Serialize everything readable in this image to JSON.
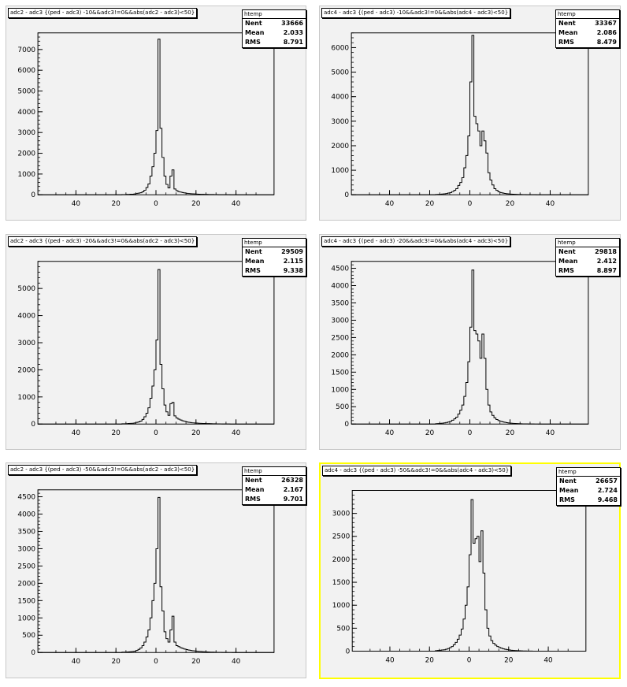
{
  "pads": [
    {
      "title": "adc2 - adc3 {(ped - adc3) -10&&adc3!=0&&abs(adc2 - adc3)<50}",
      "stats": {
        "name": "htemp",
        "entries_label": "Nent",
        "entries": "33666",
        "mean_label": "Mean",
        "mean": "2.033",
        "rms_label": "RMS",
        "rms": "8.791"
      },
      "selected": false,
      "chart_data": {
        "type": "bar",
        "title": "adc2 - adc3 {(ped - adc3) -10&&adc3!=0&&abs(adc2 - adc3)<50}",
        "xlim": [
          -59,
          59
        ],
        "ylim": [
          0,
          7800
        ],
        "xticks": [
          "40",
          "20",
          "0",
          "20",
          "40"
        ],
        "yticks": [
          "0",
          "1000",
          "2000",
          "3000",
          "4000",
          "5000",
          "6000",
          "7000"
        ],
        "bin_width": 1,
        "values": [
          0,
          0,
          0,
          0,
          0,
          0,
          0,
          0,
          0,
          0,
          0,
          0,
          0,
          0,
          0,
          0,
          0,
          0,
          0,
          0,
          0,
          0,
          0,
          0,
          0,
          0,
          0,
          0,
          0,
          0,
          0,
          0,
          0,
          0,
          0,
          0,
          0,
          0,
          0,
          0,
          0,
          0,
          10,
          10,
          20,
          20,
          30,
          30,
          40,
          60,
          80,
          100,
          140,
          220,
          350,
          520,
          900,
          1350,
          2000,
          3100,
          7500,
          3200,
          1800,
          900,
          500,
          330,
          900,
          1200,
          280,
          200,
          150,
          130,
          110,
          90,
          70,
          60,
          50,
          45,
          40,
          35,
          30,
          25,
          22,
          20,
          18,
          16,
          14,
          12,
          10,
          8,
          6,
          5,
          4,
          3,
          2,
          2,
          1,
          1,
          0,
          0,
          0,
          0,
          0,
          0,
          0,
          0,
          0,
          0,
          0,
          0,
          0,
          0,
          0,
          0,
          0,
          0,
          0,
          0
        ]
      }
    },
    {
      "title": "adc4 - adc3 {(ped - adc3) -10&&adc3!=0&&abs(adc4 - adc3)<50}",
      "stats": {
        "name": "htemp",
        "entries_label": "Nent",
        "entries": "33367",
        "mean_label": "Mean",
        "mean": "2.086",
        "rms_label": "RMS",
        "rms": "8.479"
      },
      "selected": false,
      "chart_data": {
        "type": "bar",
        "title": "adc4 - adc3 {(ped - adc3) -10&&adc3!=0&&abs(adc4 - adc3)<50}",
        "xlim": [
          -59,
          59
        ],
        "ylim": [
          0,
          6600
        ],
        "xticks": [
          "40",
          "20",
          "0",
          "20",
          "40"
        ],
        "yticks": [
          "0",
          "1000",
          "2000",
          "3000",
          "4000",
          "5000",
          "6000"
        ],
        "bin_width": 1,
        "values": [
          0,
          0,
          0,
          0,
          0,
          0,
          0,
          0,
          0,
          0,
          0,
          0,
          0,
          0,
          0,
          0,
          0,
          0,
          0,
          0,
          0,
          0,
          0,
          0,
          0,
          0,
          0,
          0,
          0,
          0,
          0,
          0,
          0,
          0,
          0,
          0,
          0,
          0,
          0,
          0,
          0,
          0,
          10,
          15,
          20,
          30,
          40,
          50,
          70,
          90,
          130,
          180,
          250,
          380,
          500,
          700,
          1100,
          1600,
          2400,
          4600,
          6500,
          3200,
          2900,
          2600,
          2000,
          2600,
          2200,
          1700,
          900,
          600,
          400,
          250,
          180,
          120,
          90,
          70,
          55,
          45,
          35,
          28,
          22,
          18,
          15,
          12,
          10,
          8,
          6,
          5,
          4,
          3,
          2,
          2,
          1,
          1,
          0,
          0,
          0,
          0,
          0,
          0,
          0,
          0,
          0,
          0,
          0,
          0,
          0,
          0,
          0,
          0,
          0,
          0,
          0,
          0,
          0,
          0,
          0,
          0
        ]
      }
    },
    {
      "title": "adc2 - adc3 {(ped - adc3) -20&&adc3!=0&&abs(adc2 - adc3)<50}",
      "stats": {
        "name": "htemp",
        "entries_label": "Nent",
        "entries": "29509",
        "mean_label": "Mean",
        "mean": "2.115",
        "rms_label": "RMS",
        "rms": "9.338"
      },
      "selected": false,
      "chart_data": {
        "type": "bar",
        "title": "adc2 - adc3 {(ped - adc3) -20&&adc3!=0&&abs(adc2 - adc3)<50}",
        "xlim": [
          -59,
          59
        ],
        "ylim": [
          0,
          6000
        ],
        "xticks": [
          "40",
          "20",
          "0",
          "20",
          "40"
        ],
        "yticks": [
          "0",
          "1000",
          "2000",
          "3000",
          "4000",
          "5000"
        ],
        "bin_width": 1,
        "values": [
          0,
          0,
          0,
          0,
          0,
          0,
          0,
          0,
          0,
          0,
          0,
          0,
          0,
          0,
          0,
          0,
          0,
          0,
          0,
          0,
          0,
          0,
          0,
          0,
          0,
          0,
          0,
          0,
          0,
          0,
          0,
          0,
          0,
          0,
          0,
          0,
          0,
          0,
          0,
          0,
          0,
          0,
          10,
          10,
          15,
          20,
          25,
          30,
          40,
          60,
          80,
          110,
          170,
          270,
          400,
          600,
          950,
          1400,
          2000,
          3100,
          5700,
          2200,
          1300,
          700,
          450,
          320,
          750,
          800,
          300,
          220,
          180,
          150,
          120,
          100,
          80,
          65,
          55,
          45,
          40,
          35,
          30,
          25,
          22,
          20,
          18,
          16,
          14,
          12,
          10,
          8,
          6,
          5,
          4,
          3,
          2,
          2,
          1,
          1,
          0,
          0,
          0,
          0,
          0,
          0,
          0,
          0,
          0,
          0,
          0,
          0,
          0,
          0,
          0,
          0,
          0,
          0,
          0,
          0
        ]
      }
    },
    {
      "title": "adc4 - adc3 {(ped - adc3) -20&&adc3!=0&&abs(adc4 - adc3)<50}",
      "stats": {
        "name": "htemp",
        "entries_label": "Nent",
        "entries": "29818",
        "mean_label": "Mean",
        "mean": "2.412",
        "rms_label": "RMS",
        "rms": "8.897"
      },
      "selected": false,
      "chart_data": {
        "type": "bar",
        "title": "adc4 - adc3 {(ped - adc3) -20&&adc3!=0&&abs(adc4 - adc3)<50}",
        "xlim": [
          -59,
          59
        ],
        "ylim": [
          0,
          4700
        ],
        "xticks": [
          "40",
          "20",
          "0",
          "20",
          "40"
        ],
        "yticks": [
          "0",
          "500",
          "1000",
          "1500",
          "2000",
          "2500",
          "3000",
          "3500",
          "4000",
          "4500"
        ],
        "bin_width": 1,
        "values": [
          0,
          0,
          0,
          0,
          0,
          0,
          0,
          0,
          0,
          0,
          0,
          0,
          0,
          0,
          0,
          0,
          0,
          0,
          0,
          0,
          0,
          0,
          0,
          0,
          0,
          0,
          0,
          0,
          0,
          0,
          0,
          0,
          0,
          0,
          0,
          0,
          0,
          0,
          0,
          0,
          0,
          0,
          10,
          15,
          20,
          25,
          35,
          45,
          60,
          80,
          110,
          150,
          200,
          290,
          400,
          550,
          800,
          1200,
          1800,
          2800,
          4450,
          2700,
          2600,
          2400,
          1900,
          2600,
          1900,
          1000,
          550,
          350,
          250,
          180,
          130,
          100,
          80,
          65,
          50,
          40,
          32,
          26,
          20,
          16,
          13,
          10,
          8,
          6,
          5,
          4,
          3,
          2,
          2,
          1,
          1,
          0,
          0,
          0,
          0,
          0,
          0,
          0,
          0,
          0,
          0,
          0,
          0,
          0,
          0,
          0,
          0,
          0,
          0,
          0,
          0,
          0,
          0,
          0,
          0,
          0
        ]
      }
    },
    {
      "title": "adc2 - adc3 {(ped - adc3) -50&&adc3!=0&&abs(adc2 - adc3)<50}",
      "stats": {
        "name": "htemp",
        "entries_label": "Nent",
        "entries": "26328",
        "mean_label": "Mean",
        "mean": "2.167",
        "rms_label": "RMS",
        "rms": "9.701"
      },
      "selected": false,
      "chart_data": {
        "type": "bar",
        "title": "adc2 - adc3 {(ped - adc3) -50&&adc3!=0&&abs(adc2 - adc3)<50}",
        "xlim": [
          -59,
          59
        ],
        "ylim": [
          0,
          4700
        ],
        "xticks": [
          "40",
          "20",
          "0",
          "20",
          "40"
        ],
        "yticks": [
          "0",
          "500",
          "1000",
          "1500",
          "2000",
          "2500",
          "3000",
          "3500",
          "4000",
          "4500"
        ],
        "bin_width": 1,
        "values": [
          0,
          0,
          0,
          0,
          0,
          0,
          0,
          0,
          0,
          0,
          0,
          0,
          0,
          0,
          0,
          0,
          0,
          0,
          0,
          0,
          0,
          0,
          0,
          0,
          0,
          0,
          0,
          0,
          0,
          0,
          0,
          0,
          0,
          0,
          0,
          0,
          0,
          0,
          0,
          0,
          0,
          0,
          10,
          10,
          15,
          20,
          25,
          30,
          40,
          60,
          90,
          130,
          200,
          300,
          450,
          650,
          1000,
          1500,
          2000,
          3000,
          4480,
          1900,
          1200,
          600,
          400,
          300,
          650,
          1050,
          300,
          200,
          170,
          140,
          120,
          100,
          85,
          70,
          60,
          50,
          45,
          40,
          35,
          30,
          26,
          22,
          18,
          15,
          12,
          10,
          8,
          6,
          5,
          4,
          3,
          2,
          2,
          1,
          1,
          0,
          0,
          0,
          0,
          0,
          0,
          0,
          0,
          0,
          0,
          0,
          0,
          0,
          0,
          0,
          0,
          0,
          0,
          0,
          0,
          0
        ]
      }
    },
    {
      "title": "adc4 - adc3 {(ped - adc3) -50&&adc3!=0&&abs(adc4 - adc3)<50}",
      "stats": {
        "name": "htemp",
        "entries_label": "Nent",
        "entries": "26657",
        "mean_label": "Mean",
        "mean": "2.724",
        "rms_label": "RMS",
        "rms": "9.468"
      },
      "selected": true,
      "chart_data": {
        "type": "bar",
        "title": "adc4 - adc3 {(ped - adc3) -50&&adc3!=0&&abs(adc4 - adc3)<50}",
        "xlim": [
          -59,
          59
        ],
        "ylim": [
          0,
          3500
        ],
        "xticks": [
          "40",
          "20",
          "0",
          "20",
          "40"
        ],
        "yticks": [
          "0",
          "500",
          "1000",
          "1500",
          "2000",
          "2500",
          "3000"
        ],
        "bin_width": 1,
        "values": [
          0,
          0,
          0,
          0,
          0,
          0,
          0,
          0,
          0,
          0,
          0,
          0,
          0,
          0,
          0,
          0,
          0,
          0,
          0,
          0,
          0,
          0,
          0,
          0,
          0,
          0,
          0,
          0,
          0,
          0,
          0,
          0,
          0,
          0,
          0,
          0,
          0,
          0,
          0,
          0,
          0,
          0,
          10,
          15,
          20,
          25,
          30,
          40,
          55,
          75,
          100,
          140,
          190,
          260,
          350,
          480,
          700,
          1000,
          1400,
          2100,
          3300,
          2350,
          2450,
          2500,
          1950,
          2620,
          1700,
          900,
          500,
          330,
          230,
          170,
          130,
          100,
          80,
          64,
          50,
          40,
          32,
          26,
          20,
          16,
          13,
          10,
          8,
          6,
          5,
          4,
          3,
          2,
          2,
          1,
          1,
          0,
          0,
          0,
          0,
          0,
          0,
          0,
          0,
          0,
          0,
          0,
          0,
          0,
          0,
          0,
          0,
          0,
          0,
          0,
          0,
          0,
          0,
          0,
          0,
          0
        ]
      }
    }
  ]
}
